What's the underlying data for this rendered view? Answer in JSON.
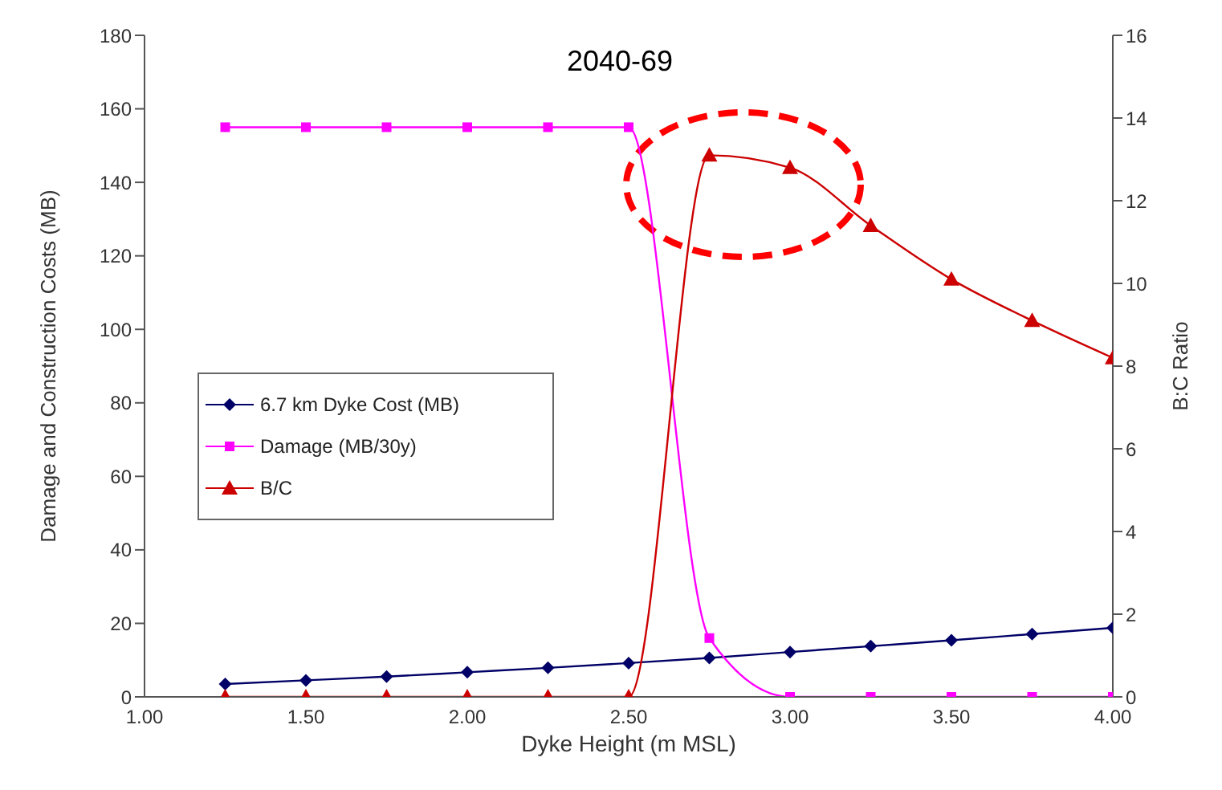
{
  "chart_data": {
    "type": "line",
    "title": "2040-69",
    "xlabel": "Dyke Height  (m MSL)",
    "ylabel": "Damage and Construction Costs (MB)",
    "y2label": "B:C Ratio",
    "x": [
      1.25,
      1.5,
      1.75,
      2.0,
      2.25,
      2.5,
      2.75,
      3.0,
      3.25,
      3.5,
      3.75,
      4.0
    ],
    "series": [
      {
        "name": "6.7 km Dyke Cost (MB)",
        "color": "#000066",
        "marker": "diamond",
        "values": [
          3.5,
          4.5,
          5.5,
          6.7,
          7.9,
          9.2,
          10.6,
          12.2,
          13.8,
          15.4,
          17.1,
          18.8
        ]
      },
      {
        "name": "Damage (MB/30y)",
        "color": "#ff00ff",
        "marker": "square",
        "values": [
          155,
          155,
          155,
          155,
          155,
          155,
          16,
          0,
          0,
          0,
          0,
          0
        ]
      },
      {
        "name": "B/C",
        "color": "#cc0000",
        "marker": "triangle",
        "axis": "y2",
        "values": [
          0,
          0,
          0,
          0,
          0,
          0,
          13.1,
          12.8,
          11.4,
          10.1,
          9.1,
          8.2
        ]
      }
    ],
    "xlim": [
      1,
      4
    ],
    "xticks": [
      {
        "value": 1,
        "label": "1.00"
      },
      {
        "value": 1.5,
        "label": "1.50"
      },
      {
        "value": 2,
        "label": "2.00"
      },
      {
        "value": 2.5,
        "label": "2.50"
      },
      {
        "value": 3,
        "label": "3.00"
      },
      {
        "value": 3.5,
        "label": "3.50"
      },
      {
        "value": 4,
        "label": "4.00"
      }
    ],
    "ylim": [
      0,
      180
    ],
    "yticks": [
      0,
      20,
      40,
      60,
      80,
      100,
      120,
      140,
      160,
      180
    ],
    "y2lim": [
      0,
      16
    ],
    "y2ticks": [
      0,
      2,
      4,
      6,
      8,
      10,
      12,
      14,
      16
    ],
    "legend": "left"
  }
}
